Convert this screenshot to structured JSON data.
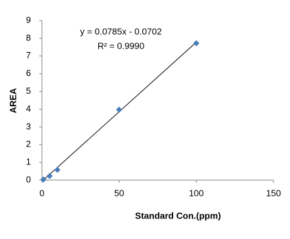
{
  "chart_data": {
    "type": "scatter",
    "x_label": "Standard Con.(ppm)",
    "y_label": "AREA",
    "series": [
      {
        "name": "AREA",
        "color": "#4a7ebb",
        "x": [
          1,
          5,
          10,
          50,
          100
        ],
        "values": [
          0.04,
          0.23,
          0.58,
          3.97,
          7.72
        ]
      }
    ],
    "trendline": {
      "equation": "y = 0.0785x - 0.0702",
      "r2_label": "R² = 0.9990",
      "slope": 0.0785,
      "intercept": -0.0702,
      "color": "#000000"
    },
    "xlim": [
      0,
      150
    ],
    "xticks": [
      0,
      50,
      100,
      150
    ],
    "ylim": [
      0,
      9
    ],
    "yticks": [
      0,
      1,
      2,
      3,
      4,
      5,
      6,
      7,
      8,
      9
    ],
    "grid": false
  }
}
